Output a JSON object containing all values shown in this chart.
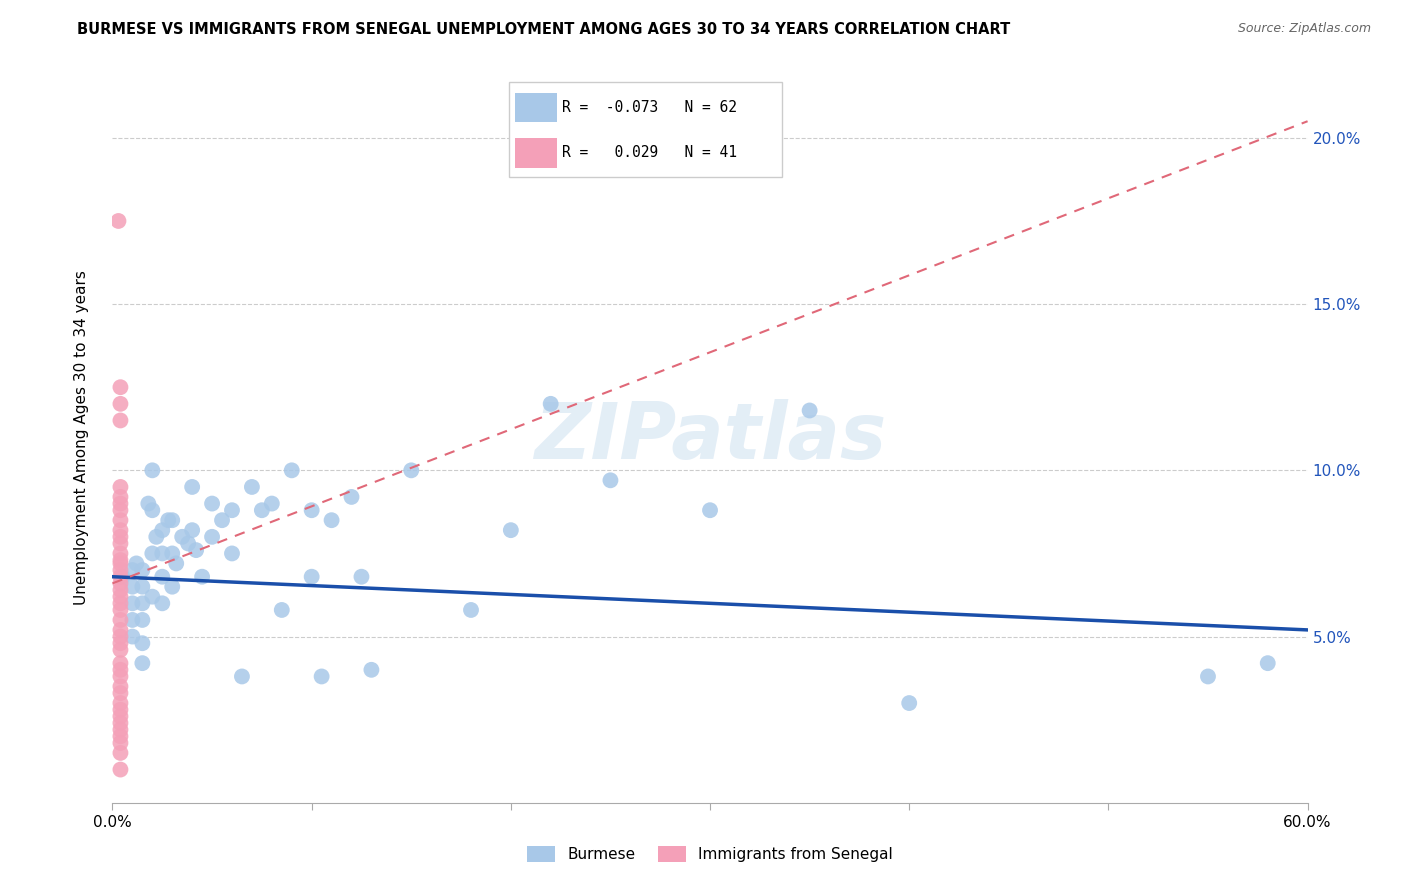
{
  "title": "BURMESE VS IMMIGRANTS FROM SENEGAL UNEMPLOYMENT AMONG AGES 30 TO 34 YEARS CORRELATION CHART",
  "source": "Source: ZipAtlas.com",
  "ylabel": "Unemployment Among Ages 30 to 34 years",
  "xlim": [
    0,
    0.6
  ],
  "ylim": [
    0,
    0.22
  ],
  "xticks": [
    0.0,
    0.1,
    0.2,
    0.3,
    0.4,
    0.5,
    0.6
  ],
  "xticklabels": [
    "0.0%",
    "",
    "",
    "",
    "",
    "",
    "60.0%"
  ],
  "ytick_vals": [
    0.05,
    0.1,
    0.15,
    0.2
  ],
  "ytick_labels_right": [
    "5.0%",
    "10.0%",
    "15.0%",
    "20.0%"
  ],
  "burmese_R": -0.073,
  "burmese_N": 62,
  "senegal_R": 0.029,
  "senegal_N": 41,
  "burmese_color": "#a8c8e8",
  "senegal_color": "#f4a0b8",
  "burmese_line_color": "#1a4faa",
  "senegal_line_color": "#e06878",
  "watermark": "ZIPatlas",
  "burmese_line_x0": 0.0,
  "burmese_line_x1": 0.6,
  "burmese_line_y0": 0.068,
  "burmese_line_y1": 0.052,
  "senegal_line_x0": 0.0,
  "senegal_line_x1": 0.6,
  "senegal_line_y0": 0.066,
  "senegal_line_y1": 0.205,
  "burmese_x": [
    0.005,
    0.01,
    0.01,
    0.01,
    0.01,
    0.01,
    0.012,
    0.015,
    0.015,
    0.015,
    0.015,
    0.015,
    0.015,
    0.018,
    0.02,
    0.02,
    0.02,
    0.02,
    0.022,
    0.025,
    0.025,
    0.025,
    0.025,
    0.028,
    0.03,
    0.03,
    0.03,
    0.032,
    0.035,
    0.038,
    0.04,
    0.04,
    0.042,
    0.045,
    0.05,
    0.05,
    0.055,
    0.06,
    0.06,
    0.065,
    0.07,
    0.075,
    0.08,
    0.085,
    0.09,
    0.1,
    0.1,
    0.105,
    0.11,
    0.12,
    0.125,
    0.13,
    0.15,
    0.18,
    0.2,
    0.22,
    0.25,
    0.3,
    0.35,
    0.4,
    0.55,
    0.58
  ],
  "burmese_y": [
    0.068,
    0.07,
    0.065,
    0.06,
    0.055,
    0.05,
    0.072,
    0.07,
    0.065,
    0.06,
    0.055,
    0.048,
    0.042,
    0.09,
    0.1,
    0.088,
    0.075,
    0.062,
    0.08,
    0.082,
    0.075,
    0.068,
    0.06,
    0.085,
    0.085,
    0.075,
    0.065,
    0.072,
    0.08,
    0.078,
    0.095,
    0.082,
    0.076,
    0.068,
    0.09,
    0.08,
    0.085,
    0.088,
    0.075,
    0.038,
    0.095,
    0.088,
    0.09,
    0.058,
    0.1,
    0.088,
    0.068,
    0.038,
    0.085,
    0.092,
    0.068,
    0.04,
    0.1,
    0.058,
    0.082,
    0.12,
    0.097,
    0.088,
    0.118,
    0.03,
    0.038,
    0.042
  ],
  "senegal_x": [
    0.003,
    0.004,
    0.004,
    0.004,
    0.004,
    0.004,
    0.004,
    0.004,
    0.004,
    0.004,
    0.004,
    0.004,
    0.004,
    0.004,
    0.004,
    0.004,
    0.004,
    0.004,
    0.004,
    0.004,
    0.004,
    0.004,
    0.004,
    0.004,
    0.004,
    0.004,
    0.004,
    0.004,
    0.004,
    0.004,
    0.004,
    0.004,
    0.004,
    0.004,
    0.004,
    0.004,
    0.004,
    0.004,
    0.004,
    0.004,
    0.004
  ],
  "senegal_y": [
    0.175,
    0.125,
    0.12,
    0.115,
    0.095,
    0.092,
    0.09,
    0.088,
    0.085,
    0.082,
    0.08,
    0.078,
    0.075,
    0.073,
    0.072,
    0.07,
    0.068,
    0.066,
    0.064,
    0.062,
    0.06,
    0.058,
    0.055,
    0.052,
    0.05,
    0.048,
    0.046,
    0.042,
    0.04,
    0.038,
    0.035,
    0.033,
    0.03,
    0.028,
    0.026,
    0.024,
    0.022,
    0.02,
    0.018,
    0.015,
    0.01
  ]
}
